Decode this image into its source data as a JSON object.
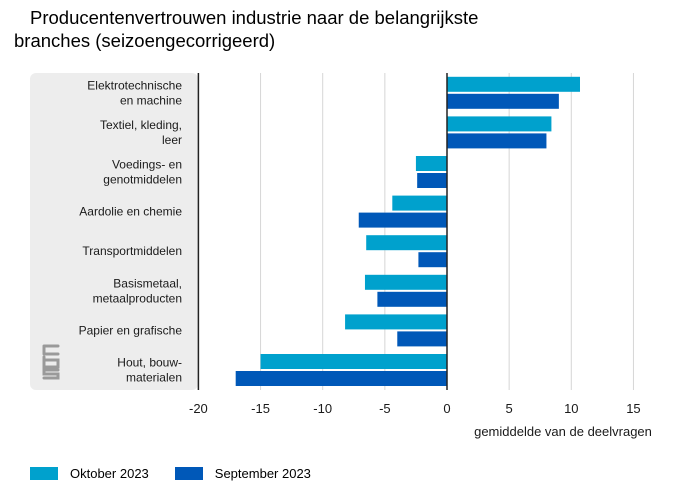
{
  "title": {
    "line1": "Producentenvertrouwen industrie naar de belangrijkste",
    "line2": "branches (seizoengecorrigeerd)"
  },
  "logo": {
    "name": "cbs-logo",
    "text": "cbs"
  },
  "chart_data": {
    "type": "bar",
    "orientation": "horizontal",
    "categories": [
      [
        "Elektrotechnische",
        "en machine"
      ],
      [
        "Textiel, kleding,",
        "leer"
      ],
      [
        "Voedings- en",
        "genotmiddelen"
      ],
      [
        "Aardolie en chemie"
      ],
      [
        "Transportmiddelen"
      ],
      [
        "Basismetaal,",
        "metaalproducten"
      ],
      [
        "Papier en grafische"
      ],
      [
        "Hout, bouw-",
        "materialen"
      ]
    ],
    "series": [
      {
        "name": "Oktober 2023",
        "color": "#00a1cd",
        "values": [
          10.7,
          8.4,
          -2.5,
          -4.4,
          -6.5,
          -6.6,
          -8.2,
          -15.0
        ]
      },
      {
        "name": "September 2023",
        "color": "#0058b8",
        "values": [
          9.0,
          8.0,
          -2.4,
          -7.1,
          -2.3,
          -5.6,
          -4.0,
          -17.0
        ]
      }
    ],
    "xlabel": "gemiddelde van de deelvragen",
    "ylabel": "",
    "xlim": [
      -20,
      15
    ],
    "xticks": [
      -20,
      -15,
      -10,
      -5,
      0,
      5,
      10,
      15
    ],
    "grid": true,
    "legend_position": "bottom-left"
  }
}
